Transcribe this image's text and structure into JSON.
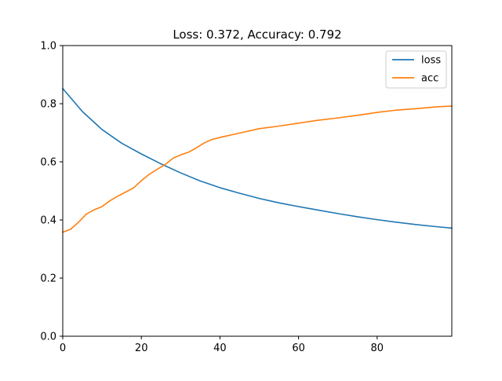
{
  "chart_data": {
    "type": "line",
    "title": "Loss: 0.372, Accuracy: 0.792",
    "xlabel": "",
    "ylabel": "",
    "xlim": [
      0,
      99
    ],
    "ylim": [
      0,
      1.0
    ],
    "x_ticks": [
      0,
      20,
      40,
      60,
      80
    ],
    "x_tick_labels": [
      "0",
      "20",
      "40",
      "60",
      "80"
    ],
    "y_ticks": [
      0,
      0.2,
      0.4,
      0.6,
      0.8,
      1.0
    ],
    "y_tick_labels": [
      "0.0",
      "0.2",
      "0.4",
      "0.6",
      "0.8",
      "1.0"
    ],
    "grid": false,
    "legend_position": "top-right",
    "series": [
      {
        "name": "loss",
        "color": "#1f77b4",
        "x": [
          0,
          5,
          10,
          15,
          20,
          25,
          30,
          35,
          40,
          45,
          50,
          55,
          60,
          65,
          70,
          75,
          80,
          85,
          90,
          95,
          99
        ],
        "values": [
          0.852,
          0.773,
          0.711,
          0.664,
          0.627,
          0.593,
          0.562,
          0.534,
          0.511,
          0.492,
          0.474,
          0.459,
          0.446,
          0.434,
          0.422,
          0.411,
          0.401,
          0.392,
          0.384,
          0.377,
          0.372
        ]
      },
      {
        "name": "acc",
        "color": "#ff7f0e",
        "x": [
          0,
          2,
          4,
          6,
          8,
          10,
          12,
          14,
          16,
          18,
          20,
          22,
          24,
          26,
          28,
          30,
          32,
          34,
          36,
          38,
          40,
          45,
          50,
          55,
          60,
          65,
          70,
          75,
          80,
          85,
          90,
          95,
          99
        ],
        "values": [
          0.358,
          0.368,
          0.392,
          0.42,
          0.435,
          0.446,
          0.466,
          0.482,
          0.496,
          0.51,
          0.535,
          0.557,
          0.574,
          0.59,
          0.612,
          0.624,
          0.633,
          0.648,
          0.665,
          0.677,
          0.684,
          0.699,
          0.714,
          0.723,
          0.733,
          0.743,
          0.751,
          0.76,
          0.77,
          0.778,
          0.783,
          0.789,
          0.792
        ]
      }
    ]
  }
}
